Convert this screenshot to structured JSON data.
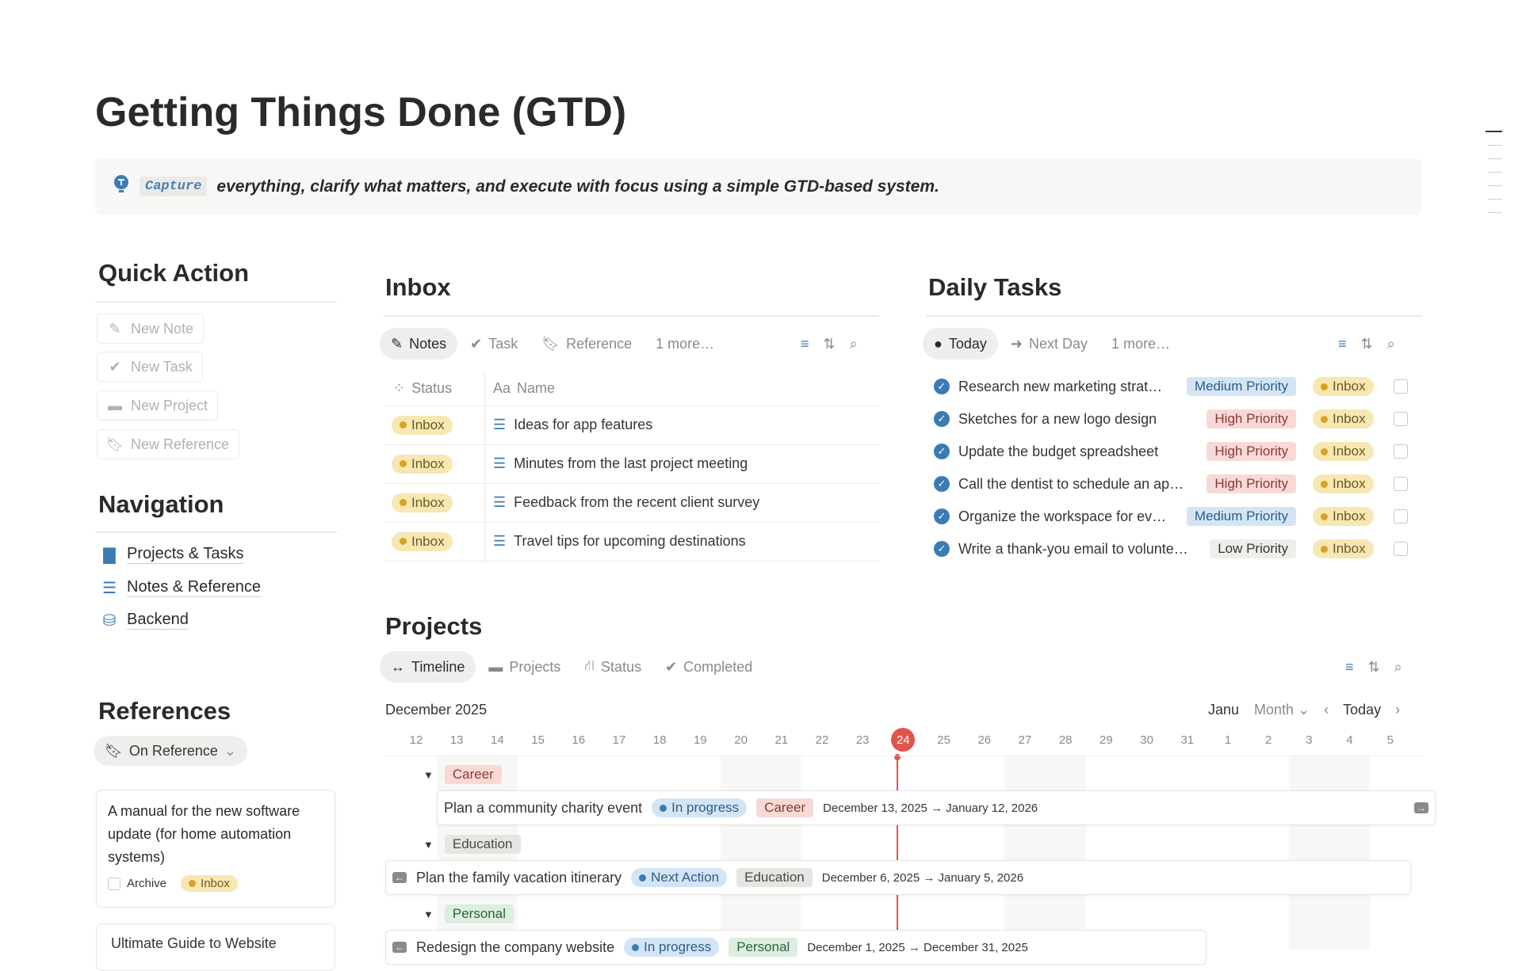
{
  "title": "Getting Things Done (GTD)",
  "callout": {
    "code": "Capture",
    "text": "everything, clarify what matters, and execute with focus using a simple GTD-based system."
  },
  "quick_action": {
    "heading": "Quick Action",
    "buttons": [
      "New Note",
      "New Task",
      "New Project",
      "New Reference"
    ]
  },
  "navigation": {
    "heading": "Navigation",
    "items": [
      "Projects & Tasks",
      "Notes & Reference",
      "Backend"
    ]
  },
  "references": {
    "heading": "References",
    "filter": "On Reference",
    "cards": [
      {
        "title": "A manual for the new software update (for home automation systems)",
        "archive_label": "Archive",
        "status": "Inbox"
      },
      {
        "title": "Ultimate Guide to Website"
      }
    ]
  },
  "inbox": {
    "heading": "Inbox",
    "tabs": [
      "Notes",
      "Task",
      "Reference",
      "1 more…"
    ],
    "columns": [
      "Status",
      "Name"
    ],
    "rows": [
      {
        "status": "Inbox",
        "name": "Ideas for app features"
      },
      {
        "status": "Inbox",
        "name": "Minutes from the last project meeting"
      },
      {
        "status": "Inbox",
        "name": "Feedback from the recent client survey"
      },
      {
        "status": "Inbox",
        "name": "Travel tips for upcoming destinations"
      }
    ]
  },
  "daily": {
    "heading": "Daily Tasks",
    "tabs": [
      "Today",
      "Next Day",
      "1 more…"
    ],
    "rows": [
      {
        "name": "Research new marketing strat…",
        "priority": "Medium Priority",
        "status": "Inbox"
      },
      {
        "name": "Sketches for a new logo design",
        "priority": "High Priority",
        "status": "Inbox"
      },
      {
        "name": "Update the budget spreadsheet",
        "priority": "High Priority",
        "status": "Inbox"
      },
      {
        "name": "Call the dentist to schedule an ap…",
        "priority": "High Priority",
        "status": "Inbox"
      },
      {
        "name": "Organize the workspace for ev…",
        "priority": "Medium Priority",
        "status": "Inbox"
      },
      {
        "name": "Write a thank-you email to volunte…",
        "priority": "Low Priority",
        "status": "Inbox"
      }
    ]
  },
  "priority_colors": {
    "Medium Priority": [
      "#d3e5f5",
      "#2f5d87"
    ],
    "High Priority": [
      "#f8d9d6",
      "#8a3a33"
    ],
    "Low Priority": [
      "#efeeec",
      "#37352f"
    ]
  },
  "projects": {
    "heading": "Projects",
    "tabs": [
      "Timeline",
      "Projects",
      "Status",
      "Completed"
    ],
    "month": "December 2025",
    "month_cut": "Janu",
    "view": "Month",
    "today": "Today",
    "days": [
      "12",
      "13",
      "14",
      "15",
      "16",
      "17",
      "18",
      "19",
      "20",
      "21",
      "22",
      "23",
      "24",
      "25",
      "26",
      "27",
      "28",
      "29",
      "30",
      "31",
      "1",
      "2",
      "3",
      "4",
      "5"
    ],
    "current_day": "24",
    "groups": [
      {
        "name": "Career",
        "color": "#f8d9d6",
        "fg": "#8a3a33",
        "item": {
          "name": "Plan a community charity event",
          "status": "In progress",
          "dates": "December 13, 2025 → January 12, 2026"
        }
      },
      {
        "name": "Education",
        "color": "#e6e5e2",
        "fg": "#4a4944",
        "item": {
          "name": "Plan the family vacation itinerary",
          "status": "Next Action",
          "dates": "December 6, 2025 → January 5, 2026"
        }
      },
      {
        "name": "Personal",
        "color": "#dbeee0",
        "fg": "#2e6140",
        "item": {
          "name": "Redesign the company website",
          "status": "In progress",
          "dates": "December 1, 2025 → December 31, 2025"
        }
      }
    ]
  }
}
